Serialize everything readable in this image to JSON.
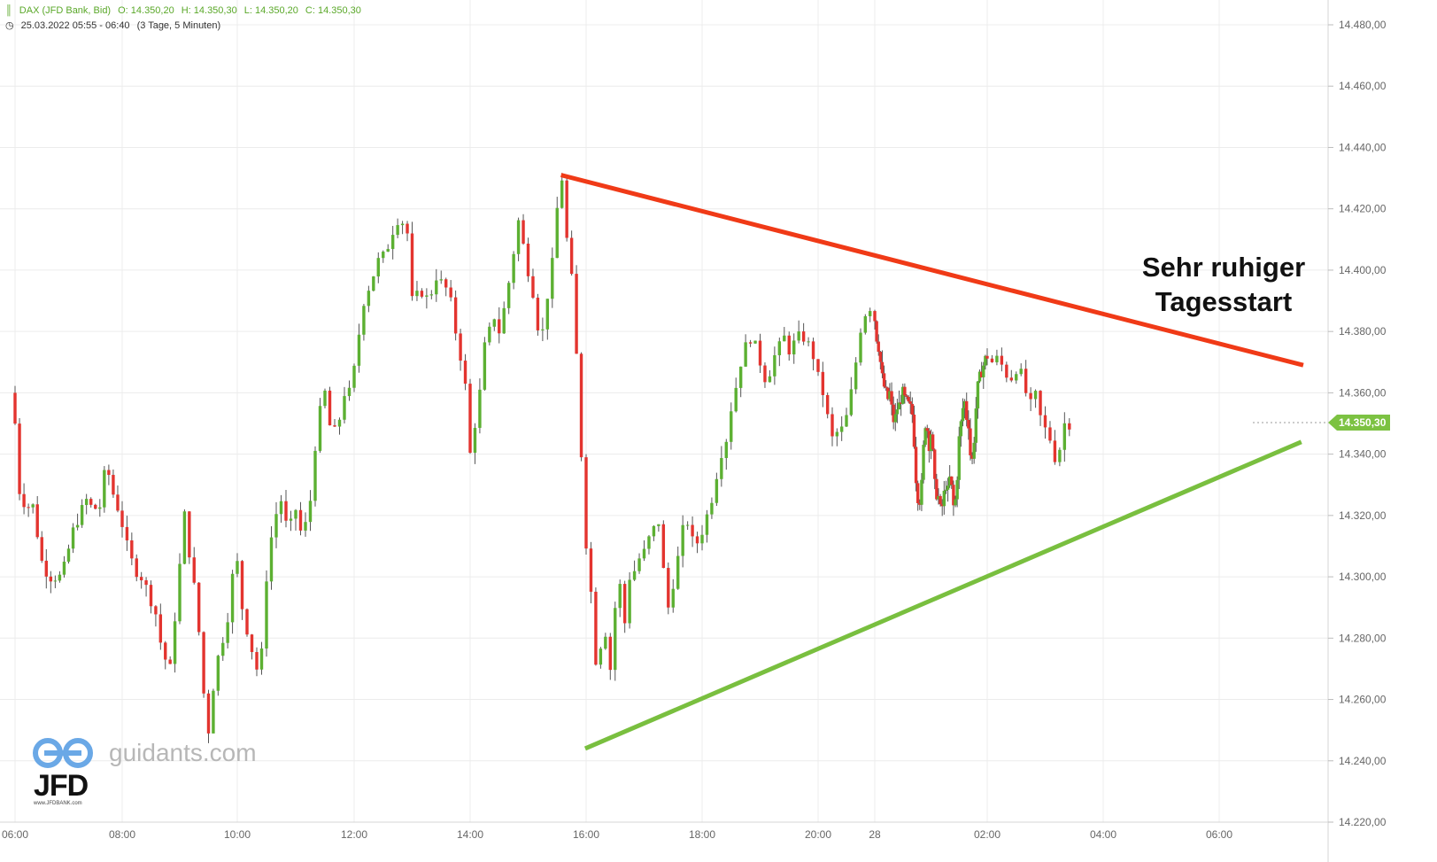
{
  "header": {
    "symbol": "DAX (JFD Bank, Bid)",
    "open": "O: 14.350,20",
    "high": "H: 14.350,30",
    "low": "L: 14.350,20",
    "close": "C: 14.350,30",
    "range": "25.03.2022 05:55 - 06:40",
    "period": "(3 Tage, 5 Minuten)"
  },
  "annotation": {
    "line1": "Sehr ruhiger",
    "line2": "Tagesstart"
  },
  "logo": {
    "brand": "guidants.com",
    "mark": "JFD",
    "url": "www.JFDBANK.com"
  },
  "colors": {
    "up": "#5cb032",
    "down": "#e3342f",
    "resistance": "#f03a17",
    "support": "#79bf3f",
    "last_price": "#7cc242"
  },
  "chart_data": {
    "type": "candlestick",
    "instrument": "DAX",
    "yaxis": {
      "min": 14220,
      "max": 14480,
      "ticks": [
        14480,
        14460,
        14440,
        14420,
        14400,
        14380,
        14360,
        14340,
        14320,
        14300,
        14280,
        14260,
        14240,
        14220
      ],
      "tick_labels": [
        "14.480,00",
        "14.460,00",
        "14.440,00",
        "14.420,00",
        "14.400,00",
        "14.380,00",
        "14.360,00",
        "14.340,00",
        "14.320,00",
        "14.300,00",
        "14.280,00",
        "14.260,00",
        "14.240,00",
        "14.220,00"
      ]
    },
    "xaxis": {
      "ticks": [
        {
          "label": "06:00",
          "t": 360
        },
        {
          "label": "08:00",
          "t": 480
        },
        {
          "label": "10:00",
          "t": 600
        },
        {
          "label": "12:00",
          "t": 720
        },
        {
          "label": "14:00",
          "t": 840
        },
        {
          "label": "16:00",
          "t": 960
        },
        {
          "label": "18:00",
          "t": 1080
        },
        {
          "label": "20:00",
          "t": 1200
        },
        {
          "label": "28",
          "t": 1260
        },
        {
          "label": "02:00",
          "t": 1560
        },
        {
          "label": "04:00",
          "t": 1680
        },
        {
          "label": "06:00",
          "t": 1800
        }
      ]
    },
    "last_price": {
      "value": 14350.3,
      "label": "14.350,30"
    },
    "trendlines": [
      {
        "name": "resistance",
        "from": {
          "t": 934,
          "v": 14431
        },
        "to": {
          "t": 1887,
          "v": 14369
        }
      },
      {
        "name": "support",
        "from": {
          "t": 959,
          "v": 14244
        },
        "to": {
          "t": 1885,
          "v": 14344
        }
      }
    ],
    "waypoints": [
      [
        355,
        14360
      ],
      [
        360,
        14350
      ],
      [
        365,
        14328
      ],
      [
        372,
        14323
      ],
      [
        380,
        14323
      ],
      [
        390,
        14305
      ],
      [
        398,
        14300
      ],
      [
        410,
        14300
      ],
      [
        415,
        14303
      ],
      [
        425,
        14315
      ],
      [
        432,
        14320
      ],
      [
        440,
        14325
      ],
      [
        447,
        14322
      ],
      [
        455,
        14323
      ],
      [
        462,
        14337
      ],
      [
        470,
        14327
      ],
      [
        478,
        14320
      ],
      [
        485,
        14310
      ],
      [
        492,
        14303
      ],
      [
        500,
        14300
      ],
      [
        507,
        14295
      ],
      [
        515,
        14288
      ],
      [
        522,
        14275
      ],
      [
        530,
        14270
      ],
      [
        538,
        14297
      ],
      [
        545,
        14320
      ],
      [
        550,
        14308
      ],
      [
        558,
        14290
      ],
      [
        565,
        14262
      ],
      [
        570,
        14250
      ],
      [
        577,
        14270
      ],
      [
        585,
        14280
      ],
      [
        592,
        14290
      ],
      [
        598,
        14310
      ],
      [
        605,
        14290
      ],
      [
        612,
        14280
      ],
      [
        620,
        14270
      ],
      [
        625,
        14275
      ],
      [
        630,
        14300
      ],
      [
        637,
        14318
      ],
      [
        645,
        14325
      ],
      [
        652,
        14314
      ],
      [
        660,
        14322
      ],
      [
        667,
        14312
      ],
      [
        675,
        14325
      ],
      [
        682,
        14350
      ],
      [
        690,
        14360
      ],
      [
        697,
        14345
      ],
      [
        704,
        14350
      ],
      [
        710,
        14360
      ],
      [
        717,
        14360
      ],
      [
        723,
        14375
      ],
      [
        730,
        14390
      ],
      [
        737,
        14396
      ],
      [
        745,
        14403
      ],
      [
        752,
        14405
      ],
      [
        760,
        14413
      ],
      [
        767,
        14418
      ],
      [
        775,
        14412
      ],
      [
        780,
        14390
      ],
      [
        790,
        14393
      ],
      [
        797,
        14390
      ],
      [
        805,
        14398
      ],
      [
        812,
        14395
      ],
      [
        818,
        14393
      ],
      [
        825,
        14380
      ],
      [
        830,
        14372
      ],
      [
        835,
        14362
      ],
      [
        840,
        14340
      ],
      [
        845,
        14350
      ],
      [
        850,
        14360
      ],
      [
        855,
        14375
      ],
      [
        860,
        14380
      ],
      [
        865,
        14385
      ],
      [
        870,
        14380
      ],
      [
        877,
        14390
      ],
      [
        883,
        14402
      ],
      [
        890,
        14416
      ],
      [
        895,
        14408
      ],
      [
        900,
        14400
      ],
      [
        905,
        14393
      ],
      [
        910,
        14382
      ],
      [
        915,
        14380
      ],
      [
        920,
        14392
      ],
      [
        925,
        14402
      ],
      [
        930,
        14420
      ],
      [
        935,
        14430
      ],
      [
        940,
        14410
      ],
      [
        945,
        14397
      ],
      [
        950,
        14372
      ],
      [
        955,
        14340
      ],
      [
        960,
        14311
      ],
      [
        965,
        14295
      ],
      [
        970,
        14273
      ],
      [
        975,
        14278
      ],
      [
        980,
        14282
      ],
      [
        985,
        14270
      ],
      [
        990,
        14290
      ],
      [
        995,
        14297
      ],
      [
        1000,
        14285
      ],
      [
        1005,
        14300
      ],
      [
        1010,
        14302
      ],
      [
        1015,
        14306
      ],
      [
        1020,
        14308
      ],
      [
        1027,
        14314
      ],
      [
        1035,
        14318
      ],
      [
        1040,
        14302
      ],
      [
        1045,
        14290
      ],
      [
        1050,
        14298
      ],
      [
        1055,
        14306
      ],
      [
        1060,
        14315
      ],
      [
        1065,
        14318
      ],
      [
        1072,
        14309
      ],
      [
        1080,
        14315
      ],
      [
        1085,
        14320
      ],
      [
        1092,
        14328
      ],
      [
        1098,
        14339
      ],
      [
        1105,
        14345
      ],
      [
        1110,
        14355
      ],
      [
        1115,
        14362
      ],
      [
        1120,
        14370
      ],
      [
        1125,
        14375
      ],
      [
        1130,
        14378
      ],
      [
        1135,
        14375
      ],
      [
        1140,
        14370
      ],
      [
        1145,
        14365
      ],
      [
        1150,
        14367
      ],
      [
        1155,
        14372
      ],
      [
        1160,
        14375
      ],
      [
        1165,
        14378
      ],
      [
        1170,
        14374
      ],
      [
        1175,
        14376
      ],
      [
        1182,
        14379
      ],
      [
        1188,
        14377
      ],
      [
        1195,
        14372
      ],
      [
        1200,
        14365
      ],
      [
        1205,
        14360
      ],
      [
        1210,
        14352
      ],
      [
        1215,
        14345
      ],
      [
        1220,
        14347
      ],
      [
        1225,
        14348
      ],
      [
        1230,
        14352
      ],
      [
        1235,
        14360
      ],
      [
        1240,
        14370
      ],
      [
        1245,
        14381
      ],
      [
        1250,
        14386
      ],
      [
        1255,
        14388
      ],
      [
        1260,
        14384
      ],
      [
        1265,
        14378
      ],
      [
        1270,
        14375
      ],
      [
        1275,
        14370
      ],
      [
        1280,
        14365
      ],
      [
        1285,
        14362
      ],
      [
        1290,
        14360
      ],
      [
        1295,
        14358
      ],
      [
        1300,
        14360
      ],
      [
        1305,
        14355
      ],
      [
        1310,
        14351
      ],
      [
        1315,
        14352
      ],
      [
        1320,
        14355
      ],
      [
        1325,
        14356
      ],
      [
        1330,
        14358
      ],
      [
        1335,
        14360
      ],
      [
        1340,
        14358
      ],
      [
        1345,
        14357
      ],
      [
        1350,
        14356
      ],
      [
        1355,
        14355
      ],
      [
        1360,
        14353
      ],
      [
        1365,
        14344
      ],
      [
        1370,
        14332
      ],
      [
        1375,
        14326
      ],
      [
        1380,
        14325
      ],
      [
        1385,
        14330
      ],
      [
        1390,
        14342
      ],
      [
        1395,
        14350
      ],
      [
        1400,
        14348
      ],
      [
        1405,
        14343
      ],
      [
        1410,
        14347
      ],
      [
        1415,
        14340
      ],
      [
        1420,
        14330
      ],
      [
        1425,
        14327
      ],
      [
        1430,
        14326
      ],
      [
        1435,
        14322
      ],
      [
        1440,
        14323
      ],
      [
        1445,
        14327
      ],
      [
        1450,
        14330
      ],
      [
        1455,
        14328
      ],
      [
        1460,
        14332
      ],
      [
        1465,
        14329
      ],
      [
        1470,
        14323
      ],
      [
        1475,
        14325
      ],
      [
        1480,
        14333
      ],
      [
        1485,
        14345
      ],
      [
        1490,
        14350
      ],
      [
        1495,
        14355
      ],
      [
        1500,
        14357
      ],
      [
        1505,
        14352
      ],
      [
        1510,
        14350
      ],
      [
        1515,
        14340
      ],
      [
        1520,
        14338
      ],
      [
        1525,
        14345
      ],
      [
        1530,
        14355
      ],
      [
        1535,
        14362
      ],
      [
        1540,
        14365
      ],
      [
        1545,
        14367
      ],
      [
        1550,
        14369
      ],
      [
        1555,
        14371
      ],
      [
        1560,
        14372
      ],
      [
        1565,
        14370
      ],
      [
        1570,
        14371
      ],
      [
        1575,
        14369
      ],
      [
        1580,
        14366
      ],
      [
        1585,
        14365
      ],
      [
        1590,
        14368
      ],
      [
        1595,
        14366
      ],
      [
        1600,
        14360
      ],
      [
        1605,
        14356
      ],
      [
        1610,
        14359
      ],
      [
        1615,
        14352
      ],
      [
        1620,
        14348
      ],
      [
        1625,
        14345
      ],
      [
        1630,
        14339
      ],
      [
        1635,
        14342
      ],
      [
        1640,
        14350
      ],
      [
        1645,
        14350
      ]
    ],
    "x_domain": [
      354,
      1822
    ],
    "candle_step_min": 5
  }
}
